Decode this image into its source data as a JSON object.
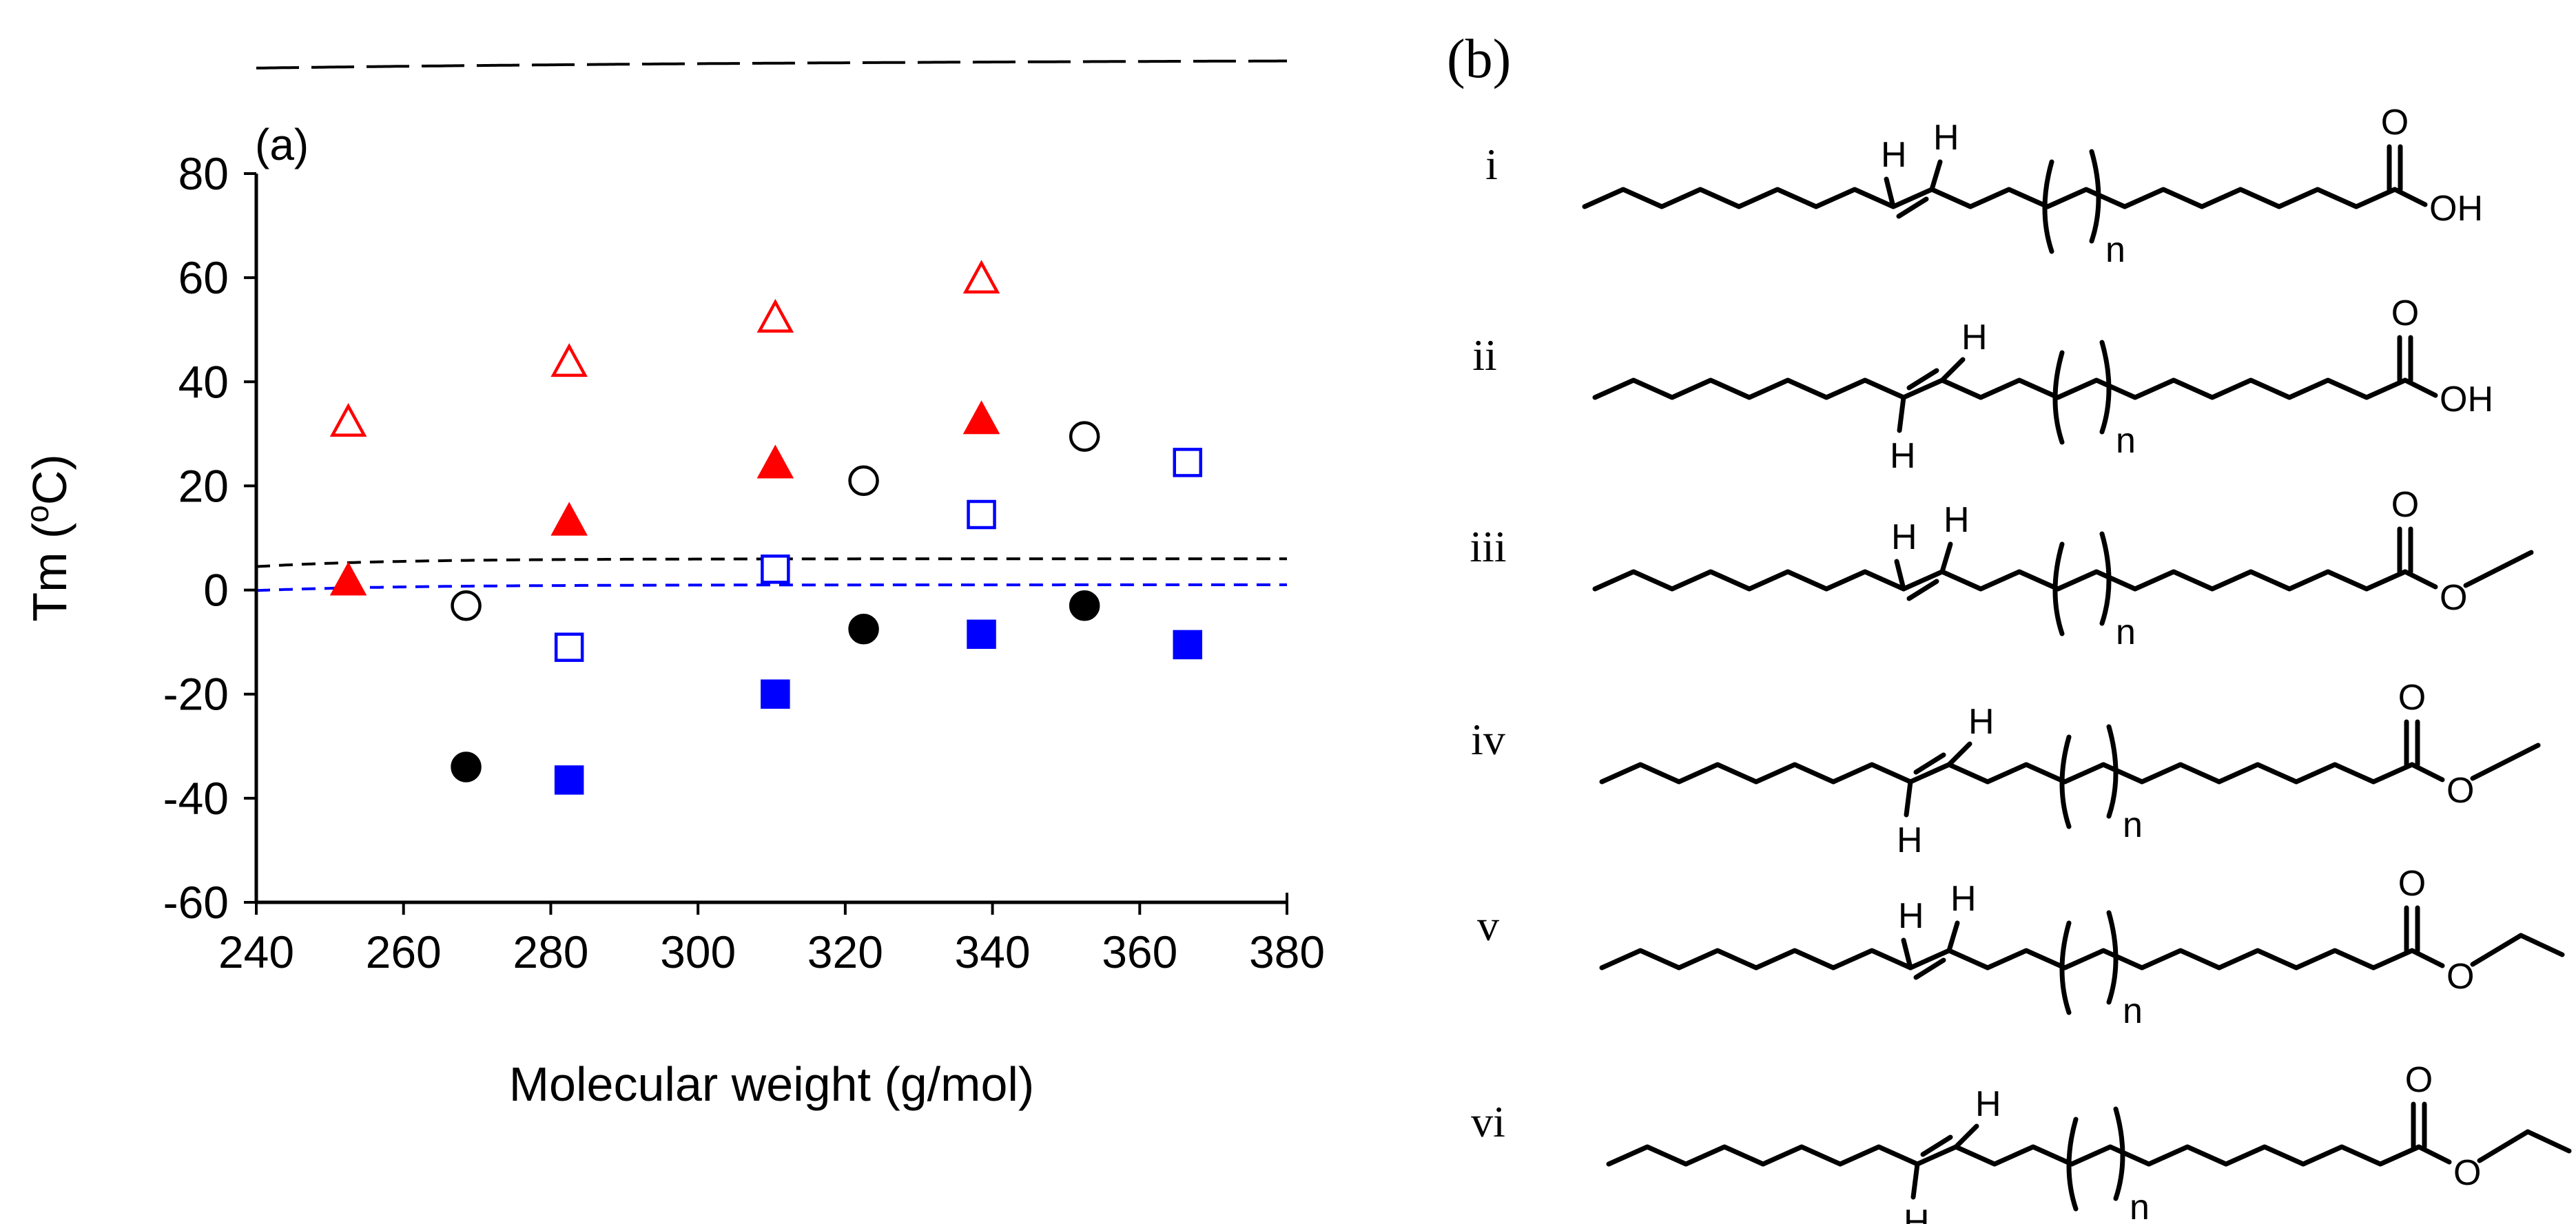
{
  "chart_data": {
    "type": "scatter",
    "panel_label": "(a)",
    "xlabel": "Molecular weight (g/mol)",
    "ylabel_main": "Tm (",
    "ylabel_sup": "o",
    "ylabel_end": "C)",
    "xlim": [
      240,
      380
    ],
    "ylim": [
      -60,
      80
    ],
    "xticks": [
      240,
      260,
      280,
      300,
      320,
      340,
      360,
      380
    ],
    "yticks": [
      -60,
      -40,
      -20,
      0,
      20,
      40,
      60,
      80
    ],
    "xtick_labels": [
      "240",
      "260",
      "280",
      "300",
      "320",
      "340",
      "360",
      "380"
    ],
    "ytick_labels": [
      "-60",
      "-40",
      "-20",
      "0",
      "20",
      "40",
      "60",
      "80"
    ],
    "series": [
      {
        "name": "i (open triangle)",
        "marker": "triangle",
        "filled": false,
        "color": "#ff0000",
        "x": [
          252.5,
          282.5,
          310.5,
          338.5
        ],
        "y": [
          32,
          43.5,
          52,
          59.5
        ],
        "fit": {
          "a": 144,
          "b": 1,
          "c": 240,
          "k": 360,
          "dash": "long"
        }
      },
      {
        "name": "ii (filled triangle)",
        "marker": "triangle",
        "filled": true,
        "color": "#ff0000",
        "x": [
          252.5,
          282.5,
          310.5,
          338.5
        ],
        "y": [
          1.5,
          13,
          24,
          32.5
        ],
        "fit": {
          "a": 122,
          "b": 6.2,
          "c": 240,
          "k": 88,
          "dash": "short"
        }
      },
      {
        "name": "iii (open circle)",
        "marker": "circle",
        "filled": false,
        "color": "#000000",
        "x": [
          268.5,
          322.5,
          352.5
        ],
        "y": [
          -3,
          21,
          29.5
        ],
        "fit": {
          "a": 102,
          "b": 2.7,
          "c": 200,
          "k": 90,
          "dash": "long"
        }
      },
      {
        "name": "iv (filled circle)",
        "marker": "circle",
        "filled": true,
        "color": "#000000",
        "x": [
          268.5,
          322.5,
          352.5
        ],
        "y": [
          -34,
          -7.5,
          -3
        ],
        "fit": {
          "a": 6,
          "b": 1.5,
          "c": 240,
          "k": 18,
          "dash": "short"
        }
      },
      {
        "name": "v (open square)",
        "marker": "square",
        "filled": false,
        "color": "#0000ff",
        "x": [
          282.5,
          310.5,
          338.5,
          366.5
        ],
        "y": [
          -11,
          4,
          14.5,
          24.5
        ],
        "fit": {
          "a": 126,
          "b": 3.3,
          "c": 200,
          "k": 90,
          "dash": "long"
        }
      },
      {
        "name": "vi (filled square)",
        "marker": "square",
        "filled": true,
        "color": "#0000ff",
        "x": [
          282.5,
          310.5,
          338.5,
          366.5
        ],
        "y": [
          -36.5,
          -20,
          -8.5,
          -10.5
        ],
        "fit": {
          "a": 1,
          "b": 1.1,
          "c": 240,
          "k": 20,
          "dash": "short"
        }
      }
    ]
  },
  "panel_b": {
    "label": "(b)",
    "compounds": [
      {
        "label": "i",
        "geometry": "cis",
        "ester": "acid"
      },
      {
        "label": "ii",
        "geometry": "trans",
        "ester": "acid"
      },
      {
        "label": "iii",
        "geometry": "cis",
        "ester": "methyl"
      },
      {
        "label": "iv",
        "geometry": "trans",
        "ester": "methyl"
      },
      {
        "label": "v",
        "geometry": "cis",
        "ester": "ethyl"
      },
      {
        "label": "vi",
        "geometry": "trans",
        "ester": "ethyl"
      }
    ],
    "atom_h": "H",
    "atom_o": "O",
    "atom_oh": "OH",
    "subscript_n": "n"
  }
}
